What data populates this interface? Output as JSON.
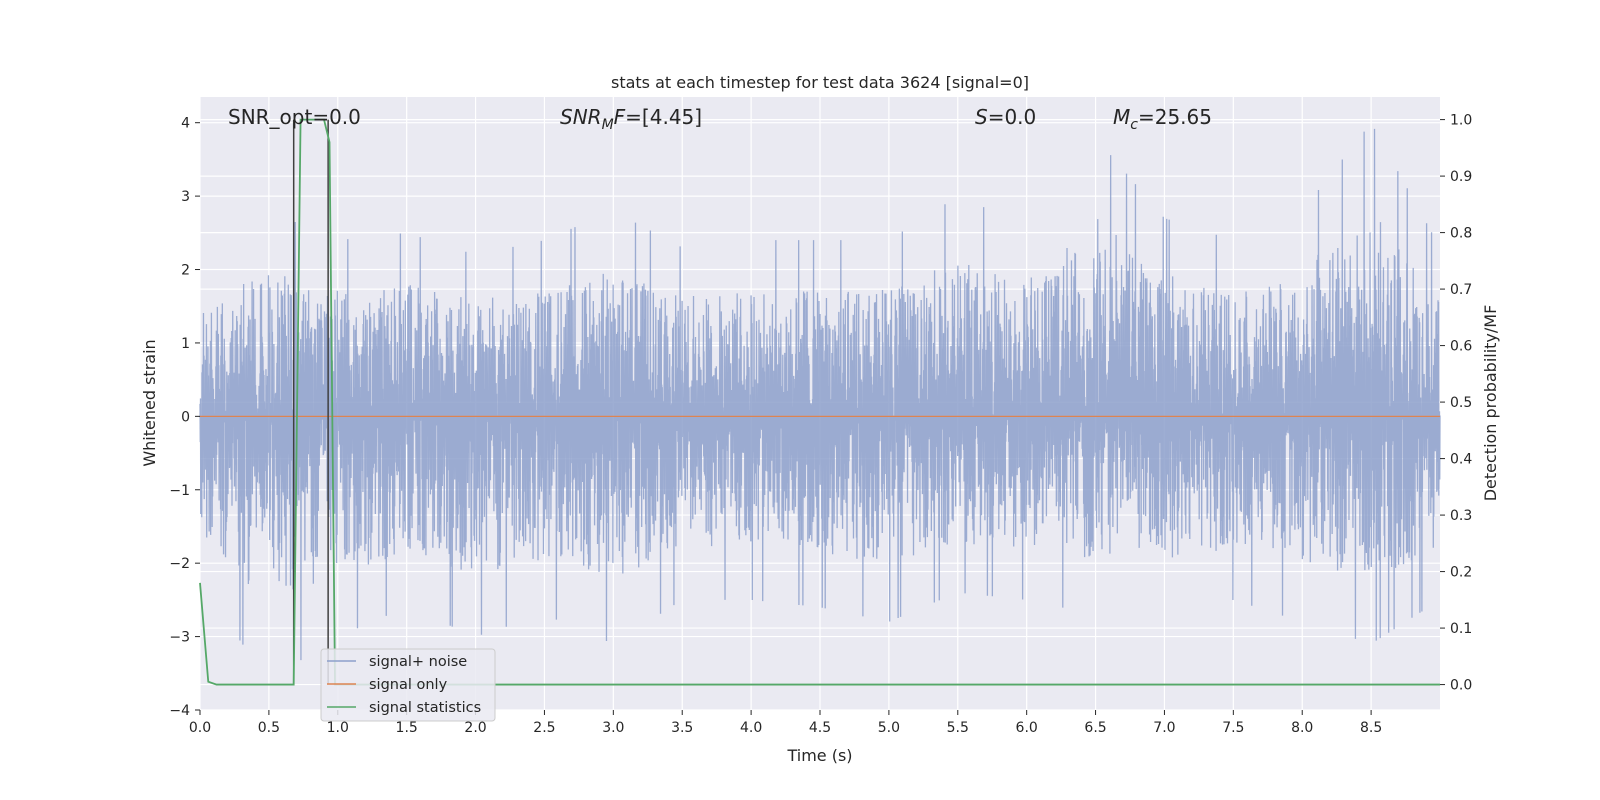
{
  "chart_data": {
    "type": "line",
    "title": "stats at each timestep for test data 3624 [signal=0]",
    "xlabel": "Time (s)",
    "ylabel": "Whitened strain",
    "y2label": "Detection probability/MF",
    "xlim": [
      0,
      9
    ],
    "ylim": [
      -4,
      4.35
    ],
    "y2lim": [
      -0.045,
      1.04
    ],
    "xticks": [
      "0.0",
      "0.5",
      "1.0",
      "1.5",
      "2.0",
      "2.5",
      "3.0",
      "3.5",
      "4.0",
      "4.5",
      "5.0",
      "5.5",
      "6.0",
      "6.5",
      "7.0",
      "7.5",
      "8.0",
      "8.5"
    ],
    "yticks": [
      "4",
      "3",
      "2",
      "1",
      "0",
      "−1",
      "−2",
      "−3",
      "−4"
    ],
    "y2ticks": [
      "1.0",
      "0.9",
      "0.8",
      "0.7",
      "0.6",
      "0.5",
      "0.4",
      "0.3",
      "0.2",
      "0.1",
      "0.0"
    ],
    "grid": true,
    "legend_position": "lower-left",
    "annotations": {
      "snr_opt": "SNR_opt=0.0",
      "snr_mf_symbol": "SNR",
      "snr_mf_sub": "M",
      "snr_mf_rest": "F",
      "snr_mf_value": "=[4.45]",
      "s_symbol": "S",
      "s_value": "=0.0",
      "mc_symbol": "M",
      "mc_sub": "c",
      "mc_value": "=25.65"
    },
    "series": [
      {
        "name": "signal+ noise",
        "axis": "left",
        "color": "#8da0cb",
        "envelope_x": [
          0.0,
          0.5,
          1.0,
          1.5,
          2.0,
          2.5,
          3.0,
          3.5,
          4.0,
          4.5,
          5.0,
          5.5,
          6.0,
          6.5,
          7.0,
          7.5,
          8.0,
          8.5,
          9.0
        ],
        "envelope_max": [
          2.0,
          2.8,
          2.4,
          2.5,
          2.2,
          2.4,
          2.8,
          2.3,
          2.4,
          2.4,
          2.4,
          3.0,
          2.6,
          3.8,
          2.7,
          2.4,
          2.8,
          4.0,
          2.3
        ],
        "envelope_min": [
          -2.3,
          -3.6,
          -3.0,
          -2.6,
          -3.0,
          -2.7,
          -3.1,
          -2.5,
          -2.5,
          -2.6,
          -2.8,
          -2.4,
          -2.5,
          -2.7,
          -2.7,
          -2.5,
          -2.8,
          -3.1,
          -2.5
        ]
      },
      {
        "name": "signal only",
        "axis": "left",
        "color": "#dd8452",
        "x": [
          0.0,
          9.0
        ],
        "y": [
          0.0,
          0.0
        ]
      },
      {
        "name": "signal statistics",
        "axis": "right",
        "color": "#55a868",
        "x": [
          0.0,
          0.06,
          0.12,
          0.68,
          0.73,
          0.78,
          0.9,
          0.94,
          0.98,
          1.02,
          9.0
        ],
        "y": [
          0.18,
          0.005,
          0.0,
          0.0,
          1.0,
          1.0,
          1.0,
          0.96,
          0.0,
          0.0,
          0.0
        ]
      }
    ],
    "vertical_lines": [
      0.68,
      0.93
    ],
    "vertical_line_color": "#404040"
  }
}
